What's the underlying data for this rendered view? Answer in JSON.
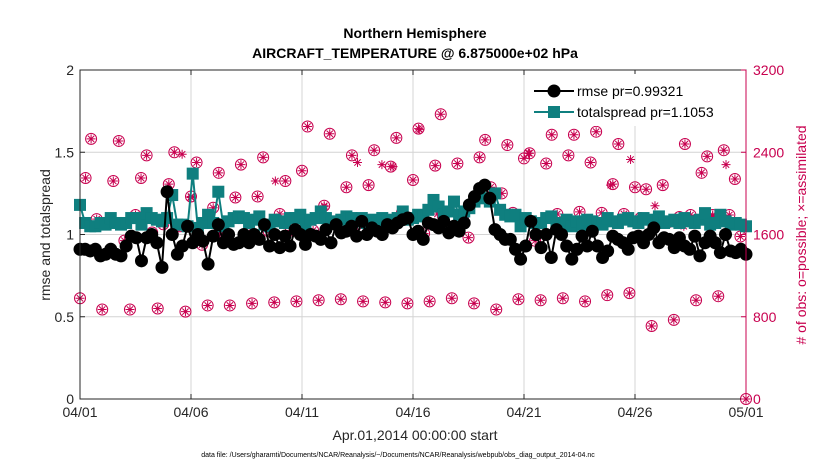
{
  "colors": {
    "rmse": "#000000",
    "spread": "#0f7f7f",
    "obs": "#c8004f",
    "grid": "#d4d4d4",
    "axis": "#262626"
  },
  "chart_data": {
    "type": "line",
    "title": "Northern Hemisphere",
    "subtitle": "AIRCRAFT_TEMPERATURE @ 6.875000e+02 hPa",
    "xlabel": "Apr.01,2014 00:00:00 start",
    "ylabel": "rmse and totalspread",
    "ylabel_right": "# of obs: o=possible; ×=assimilated",
    "xlim": [
      0,
      30
    ],
    "ylim": [
      0,
      2
    ],
    "ylim_right": [
      0,
      3200
    ],
    "x_ticks": [
      0,
      5,
      10,
      15,
      20,
      25,
      30
    ],
    "x_tick_labels": [
      "04/01",
      "04/06",
      "04/11",
      "04/16",
      "04/21",
      "04/26",
      "05/01"
    ],
    "y_ticks": [
      0,
      0.5,
      1,
      1.5,
      2
    ],
    "y_tick_labels": [
      "0",
      "0.5",
      "1",
      "1.5",
      "2"
    ],
    "y_ticks_right": [
      0,
      800,
      1600,
      2400,
      3200
    ],
    "y_tick_labels_right": [
      "0",
      "800",
      "1600",
      "2400",
      "3200"
    ],
    "grid": true,
    "legend_position": "top-right",
    "footnote": "data file: /Users/gharamti/Documents/NCAR/Reanalysis/~/Documents/NCAR/Reanalysis/webpub/obs_diag_output_2014-04.nc",
    "series": [
      {
        "name": "rmse",
        "legend_label": "rmse pr=0.99321",
        "values": [
          0.91,
          0.91,
          0.9,
          0.91,
          0.87,
          0.88,
          0.91,
          0.88,
          0.87,
          0.93,
          0.99,
          0.98,
          0.84,
          0.98,
          1.0,
          0.95,
          0.8,
          1.26,
          1.0,
          0.88,
          0.93,
          1.05,
          0.95,
          1.0,
          0.96,
          0.82,
          0.99,
          1.06,
          0.95,
          1.0,
          0.94,
          0.95,
          1.0,
          0.95,
          1.0,
          0.97,
          1.06,
          0.93,
          1.0,
          0.92,
          0.99,
          0.93,
          1.03,
          1.0,
          0.94,
          1.0,
          0.99,
          0.97,
          1.03,
          0.95,
          1.06,
          1.01,
          1.02,
          1.05,
          0.99,
          1.08,
          1.0,
          1.04,
          1.02,
          1.0,
          1.06,
          1.04,
          1.07,
          1.09,
          1.1,
          1.0,
          1.02,
          0.97,
          1.07,
          1.06,
          1.04,
          1.08,
          1.01,
          1.05,
          1.02,
          1.07,
          1.18,
          1.23,
          1.28,
          1.3,
          1.22,
          1.03,
          1.0,
          0.97,
          0.97,
          0.91,
          0.85,
          0.93,
          1.08,
          1.0,
          0.92,
          1.0,
          0.86,
          1.03,
          1.0,
          0.93,
          0.85,
          0.91,
          0.99,
          0.93,
          1.02,
          0.93,
          0.86,
          0.9,
          0.99,
          0.97,
          0.95,
          0.91,
          0.98,
          0.99,
          0.95,
          1.0,
          1.04,
          0.95,
          0.98,
          0.97,
          0.92,
          0.98,
          0.93,
          0.91,
          0.99,
          0.87,
          0.95,
          0.99,
          0.95,
          0.89,
          1.0,
          0.9,
          0.89,
          0.91,
          0.88
        ]
      },
      {
        "name": "totalspread",
        "legend_label": "totalspread pr=1.1053",
        "values": [
          1.18,
          1.07,
          1.05,
          1.05,
          1.07,
          1.06,
          1.1,
          1.07,
          1.06,
          1.07,
          1.1,
          1.1,
          1.06,
          1.13,
          1.1,
          1.09,
          1.08,
          1.1,
          1.24,
          1.06,
          1.06,
          1.05,
          1.37,
          1.04,
          1.07,
          1.12,
          1.07,
          1.26,
          1.05,
          1.08,
          1.1,
          1.11,
          1.1,
          1.07,
          1.09,
          1.11,
          1.06,
          1.05,
          1.09,
          1.08,
          1.07,
          1.1,
          1.1,
          1.12,
          1.06,
          1.09,
          1.1,
          1.14,
          1.1,
          1.07,
          1.08,
          1.09,
          1.11,
          1.1,
          1.08,
          1.1,
          1.07,
          1.09,
          1.08,
          1.1,
          1.09,
          1.07,
          1.1,
          1.14,
          1.09,
          1.1,
          1.12,
          1.11,
          1.15,
          1.21,
          1.17,
          1.12,
          1.14,
          1.2,
          1.12,
          1.14,
          1.16,
          1.2,
          1.24,
          1.22,
          1.2,
          1.25,
          1.15,
          1.12,
          1.11,
          1.12,
          1.05,
          1.1,
          1.08,
          1.07,
          1.07,
          1.1,
          1.11,
          1.07,
          1.05,
          1.09,
          1.05,
          1.08,
          1.06,
          1.09,
          1.08,
          1.07,
          1.06,
          1.1,
          1.08,
          1.07,
          1.09,
          1.1,
          1.08,
          1.07,
          1.1,
          1.09,
          1.08,
          1.11,
          1.07,
          1.08,
          1.09,
          1.07,
          1.1,
          1.08,
          1.07,
          1.09,
          1.13,
          1.06,
          1.07,
          1.12,
          1.08,
          1.06,
          1.07,
          1.06,
          1.05
        ]
      }
    ],
    "obs_possible": [
      [
        0.0,
        980
      ],
      [
        0.25,
        2150
      ],
      [
        0.5,
        2530
      ],
      [
        0.75,
        1750
      ],
      [
        1.0,
        870
      ],
      [
        1.25,
        1720
      ],
      [
        1.5,
        2120
      ],
      [
        1.75,
        2510
      ],
      [
        2.0,
        1540
      ],
      [
        2.25,
        870
      ],
      [
        2.5,
        1790
      ],
      [
        2.75,
        2150
      ],
      [
        3.0,
        2370
      ],
      [
        3.25,
        1620
      ],
      [
        3.5,
        880
      ],
      [
        3.75,
        1700
      ],
      [
        4.0,
        2090
      ],
      [
        4.25,
        2400
      ],
      [
        4.5,
        1680
      ],
      [
        4.75,
        850
      ],
      [
        5.0,
        1970
      ],
      [
        5.25,
        2300
      ],
      [
        5.5,
        1500
      ],
      [
        5.75,
        910
      ],
      [
        6.0,
        1860
      ],
      [
        6.25,
        2200
      ],
      [
        6.5,
        1600
      ],
      [
        6.75,
        910
      ],
      [
        7.0,
        1960
      ],
      [
        7.25,
        2280
      ],
      [
        7.5,
        1610
      ],
      [
        7.75,
        930
      ],
      [
        8.0,
        1970
      ],
      [
        8.25,
        2350
      ],
      [
        8.5,
        1630
      ],
      [
        8.75,
        940
      ],
      [
        9.0,
        1800
      ],
      [
        9.25,
        2120
      ],
      [
        9.5,
        1640
      ],
      [
        9.75,
        950
      ],
      [
        10.0,
        2220
      ],
      [
        10.25,
        2650
      ],
      [
        10.5,
        1640
      ],
      [
        10.75,
        960
      ],
      [
        11.0,
        1880
      ],
      [
        11.25,
        2580
      ],
      [
        11.5,
        1710
      ],
      [
        11.75,
        970
      ],
      [
        12.0,
        2060
      ],
      [
        12.25,
        2370
      ],
      [
        12.5,
        1700
      ],
      [
        12.75,
        950
      ],
      [
        13.0,
        2080
      ],
      [
        13.25,
        2420
      ],
      [
        13.5,
        1740
      ],
      [
        13.75,
        940
      ],
      [
        14.0,
        2260
      ],
      [
        14.25,
        2540
      ],
      [
        14.5,
        1810
      ],
      [
        14.75,
        930
      ],
      [
        15.0,
        2130
      ],
      [
        15.25,
        2630
      ],
      [
        15.5,
        1610
      ],
      [
        15.75,
        950
      ],
      [
        16.0,
        2270
      ],
      [
        16.25,
        2770
      ],
      [
        16.5,
        1820
      ],
      [
        16.75,
        980
      ],
      [
        17.0,
        2290
      ],
      [
        17.25,
        1770
      ],
      [
        17.5,
        1570
      ],
      [
        17.75,
        930
      ],
      [
        18.0,
        2350
      ],
      [
        18.25,
        2520
      ],
      [
        18.5,
        2060
      ],
      [
        18.75,
        870
      ],
      [
        19.0,
        2000
      ],
      [
        19.25,
        2470
      ],
      [
        19.5,
        1810
      ],
      [
        19.75,
        970
      ],
      [
        20.0,
        2340
      ],
      [
        20.25,
        2390
      ],
      [
        20.5,
        1540
      ],
      [
        20.75,
        960
      ],
      [
        21.0,
        2290
      ],
      [
        21.25,
        2570
      ],
      [
        21.5,
        1800
      ],
      [
        21.75,
        980
      ],
      [
        22.0,
        2370
      ],
      [
        22.25,
        2570
      ],
      [
        22.5,
        1820
      ],
      [
        22.75,
        950
      ],
      [
        23.0,
        2300
      ],
      [
        23.25,
        2600
      ],
      [
        23.5,
        1810
      ],
      [
        23.75,
        1010
      ],
      [
        24.0,
        2090
      ],
      [
        24.25,
        2480
      ],
      [
        24.5,
        1800
      ],
      [
        24.75,
        1030
      ],
      [
        25.0,
        2060
      ],
      [
        25.25,
        1760
      ],
      [
        25.5,
        2040
      ],
      [
        25.75,
        710
      ],
      [
        26.0,
        1760
      ],
      [
        26.25,
        2080
      ],
      [
        26.5,
        1720
      ],
      [
        26.75,
        770
      ],
      [
        27.0,
        1770
      ],
      [
        27.25,
        2480
      ],
      [
        27.5,
        1790
      ],
      [
        27.75,
        960
      ],
      [
        28.0,
        2200
      ],
      [
        28.25,
        2360
      ],
      [
        28.5,
        1790
      ],
      [
        28.75,
        1000
      ],
      [
        29.0,
        2420
      ],
      [
        29.25,
        1790
      ],
      [
        29.5,
        2140
      ],
      [
        29.75,
        1580
      ],
      [
        30.0,
        0
      ]
    ],
    "obs_assimilated": [
      [
        0.0,
        980
      ],
      [
        0.25,
        2150
      ],
      [
        0.5,
        2530
      ],
      [
        0.75,
        1750
      ],
      [
        1.0,
        870
      ],
      [
        1.25,
        1720
      ],
      [
        1.5,
        2120
      ],
      [
        1.75,
        2510
      ],
      [
        2.0,
        1540
      ],
      [
        2.25,
        870
      ],
      [
        2.5,
        1790
      ],
      [
        2.75,
        2150
      ],
      [
        3.0,
        2370
      ],
      [
        3.25,
        1620
      ],
      [
        3.5,
        880
      ],
      [
        3.75,
        1700
      ],
      [
        4.0,
        2090
      ],
      [
        4.25,
        2400
      ],
      [
        4.5,
        1680
      ],
      [
        4.75,
        850
      ],
      [
        5.0,
        1970
      ],
      [
        5.25,
        2300
      ],
      [
        5.5,
        1500
      ],
      [
        5.75,
        910
      ],
      [
        6.0,
        1860
      ],
      [
        6.25,
        2200
      ],
      [
        6.5,
        1600
      ],
      [
        6.75,
        910
      ],
      [
        7.0,
        1960
      ],
      [
        7.25,
        2280
      ],
      [
        7.5,
        1610
      ],
      [
        7.75,
        930
      ],
      [
        8.0,
        1970
      ],
      [
        8.25,
        2350
      ],
      [
        8.5,
        1630
      ],
      [
        8.75,
        940
      ],
      [
        9.0,
        1800
      ],
      [
        9.25,
        2120
      ],
      [
        9.5,
        1640
      ],
      [
        9.75,
        950
      ],
      [
        10.0,
        2220
      ],
      [
        10.25,
        2650
      ],
      [
        10.5,
        1640
      ],
      [
        10.75,
        960
      ],
      [
        11.0,
        1880
      ],
      [
        11.25,
        2580
      ],
      [
        11.5,
        1710
      ],
      [
        11.75,
        970
      ],
      [
        12.0,
        2060
      ],
      [
        12.25,
        2370
      ],
      [
        12.5,
        1700
      ],
      [
        12.75,
        950
      ],
      [
        13.0,
        2080
      ],
      [
        13.25,
        2420
      ],
      [
        13.5,
        1740
      ],
      [
        13.75,
        940
      ],
      [
        14.0,
        2260
      ],
      [
        14.25,
        2540
      ],
      [
        14.5,
        1810
      ],
      [
        14.75,
        930
      ],
      [
        15.0,
        2130
      ],
      [
        15.25,
        2630
      ],
      [
        15.5,
        1610
      ],
      [
        15.75,
        950
      ],
      [
        16.0,
        2270
      ],
      [
        16.25,
        2770
      ],
      [
        16.5,
        1820
      ],
      [
        16.75,
        980
      ],
      [
        17.0,
        2290
      ],
      [
        17.25,
        1770
      ],
      [
        17.5,
        1570
      ],
      [
        17.75,
        930
      ],
      [
        18.0,
        2350
      ],
      [
        18.25,
        2520
      ],
      [
        18.5,
        2060
      ],
      [
        18.75,
        870
      ],
      [
        19.0,
        2000
      ],
      [
        19.25,
        2470
      ],
      [
        19.5,
        1810
      ],
      [
        19.75,
        970
      ],
      [
        20.0,
        2340
      ],
      [
        20.25,
        2390
      ],
      [
        20.5,
        1540
      ],
      [
        20.75,
        960
      ],
      [
        21.0,
        2290
      ],
      [
        21.25,
        2570
      ],
      [
        21.5,
        1800
      ],
      [
        21.75,
        980
      ],
      [
        22.0,
        2370
      ],
      [
        22.25,
        2570
      ],
      [
        22.5,
        1820
      ],
      [
        22.75,
        950
      ],
      [
        23.0,
        2300
      ],
      [
        23.25,
        2600
      ],
      [
        23.5,
        1810
      ],
      [
        23.75,
        1010
      ],
      [
        24.0,
        2090
      ],
      [
        24.25,
        2480
      ],
      [
        24.5,
        1800
      ],
      [
        24.75,
        1030
      ],
      [
        25.0,
        2060
      ],
      [
        25.25,
        1760
      ],
      [
        25.5,
        2040
      ],
      [
        25.75,
        710
      ],
      [
        26.0,
        1760
      ],
      [
        26.25,
        2080
      ],
      [
        26.5,
        1720
      ],
      [
        26.75,
        770
      ],
      [
        27.0,
        1770
      ],
      [
        27.25,
        2480
      ],
      [
        27.5,
        1790
      ],
      [
        27.75,
        960
      ],
      [
        28.0,
        2200
      ],
      [
        28.25,
        2360
      ],
      [
        28.5,
        1790
      ],
      [
        28.75,
        1000
      ],
      [
        29.0,
        2420
      ],
      [
        29.25,
        1790
      ],
      [
        29.5,
        2140
      ],
      [
        29.75,
        1580
      ],
      [
        30.0,
        0
      ]
    ],
    "obs_assimilated_extra": [
      [
        2.5,
        1790
      ],
      [
        4.3,
        1640
      ],
      [
        4.6,
        2380
      ],
      [
        5.0,
        1960
      ],
      [
        6.3,
        1610
      ],
      [
        8.8,
        2120
      ],
      [
        11.0,
        1870
      ],
      [
        12.5,
        2300
      ],
      [
        13.6,
        2280
      ],
      [
        14.1,
        2260
      ],
      [
        15.3,
        2620
      ],
      [
        16.1,
        1800
      ],
      [
        18.6,
        2020
      ],
      [
        20.2,
        2390
      ],
      [
        21.5,
        1660
      ],
      [
        22.7,
        1610
      ],
      [
        23.9,
        2080
      ],
      [
        24.8,
        2330
      ],
      [
        25.9,
        1880
      ],
      [
        27.2,
        1680
      ],
      [
        28.5,
        1780
      ],
      [
        29.1,
        2280
      ]
    ]
  }
}
